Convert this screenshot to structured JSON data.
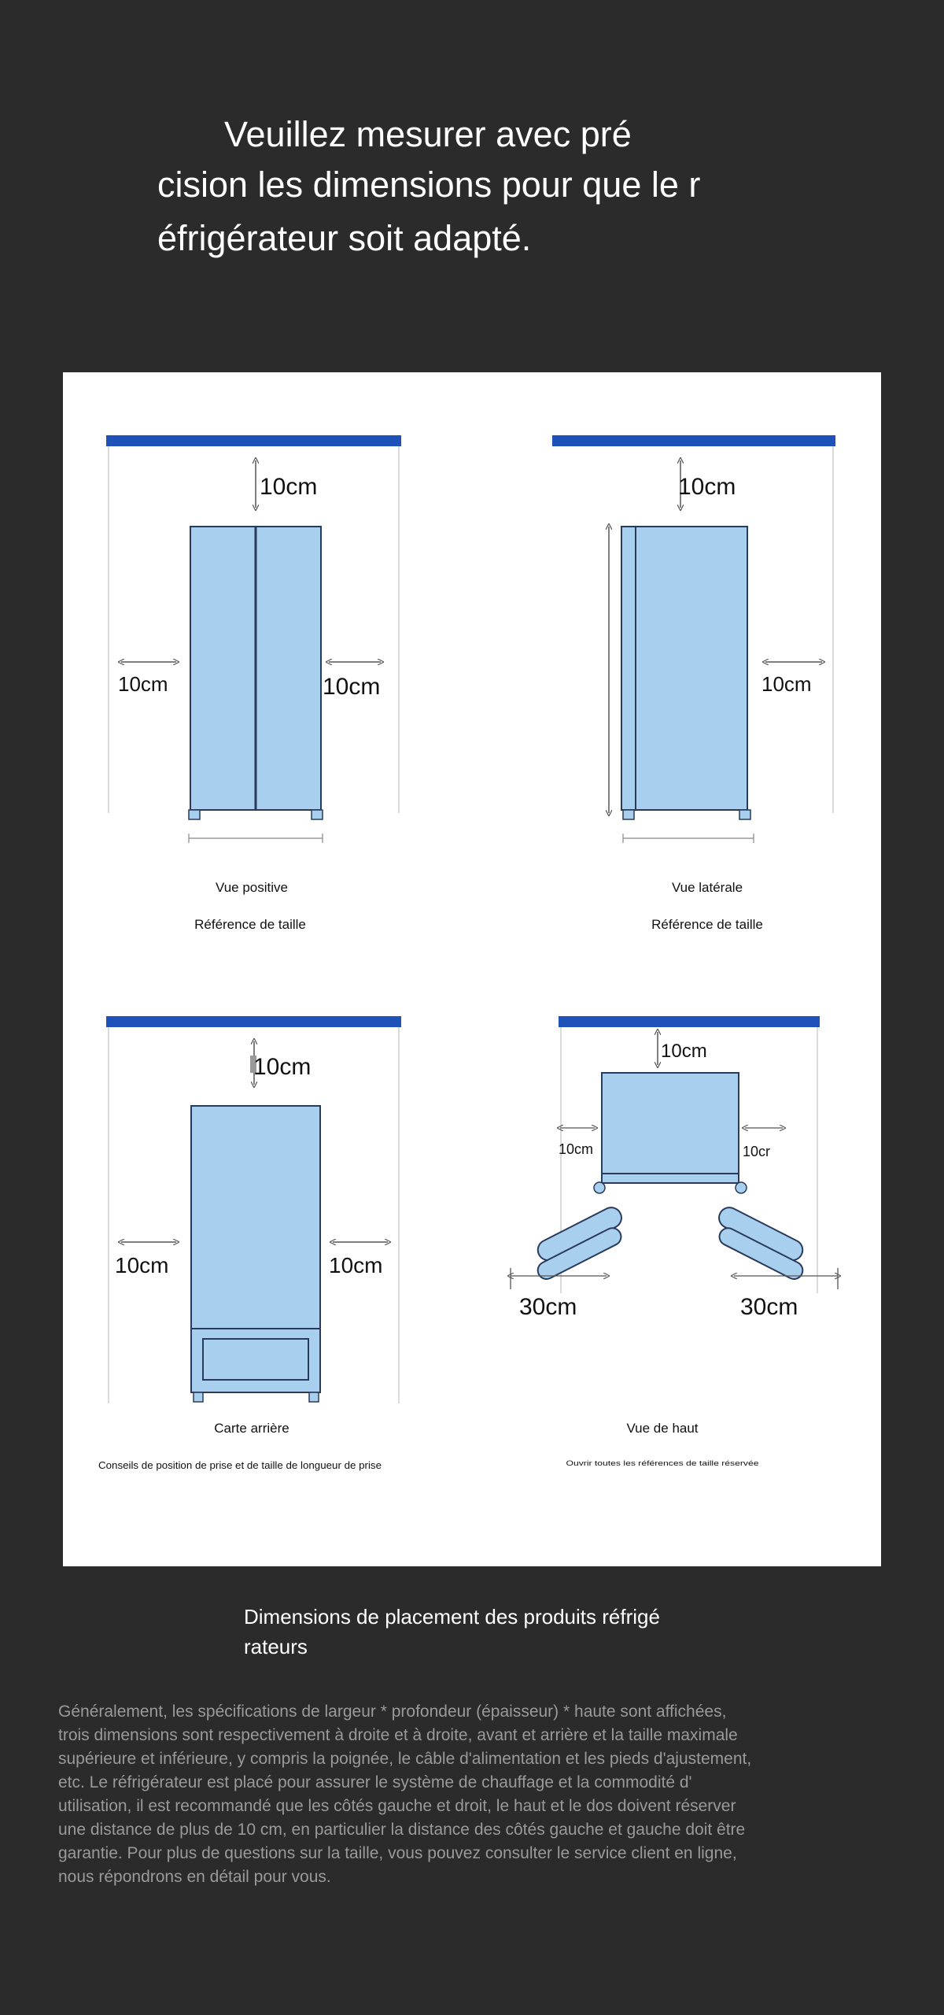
{
  "header": {
    "line1": "Veuillez mesurer avec pré",
    "line2": "cision les dimensions pour que le r",
    "line3": "éfrigérateur soit adapté."
  },
  "diagram": {
    "front": {
      "top": "10cm",
      "left": "10cm",
      "right": "10cm",
      "title": "Vue positive",
      "subtitle": "Référence de taille"
    },
    "side": {
      "top": "10cm",
      "right": "10cm",
      "title": "Vue latérale",
      "subtitle": "Référence de taille"
    },
    "back": {
      "top": "10cm",
      "left": "10cm",
      "right": "10cm",
      "title": "Carte arrière",
      "subtitle": "Conseils de position de prise et de taille de longueur de prise"
    },
    "top_view": {
      "top": "10cm",
      "left": "10cm",
      "right": "10cr",
      "door_left": "30cm",
      "door_right": "30cm",
      "title": "Vue de haut",
      "subtitle": "Ouvrir toutes les références de taille réservée"
    }
  },
  "caption": {
    "line1": "Dimensions de placement des produits réfrigé",
    "line2": "rateurs"
  },
  "description": [
    "Généralement, les spécifications de largeur * profondeur (épaisseur) * haute sont affichées,",
    "trois dimensions sont respectivement à droite et à droite, avant et arrière et la taille maximale",
    "supérieure et inférieure, y compris la poignée, le câble d'alimentation et les pieds d'ajustement,",
    "etc. Le réfrigérateur est placé pour assurer le système de chauffage et la commodité d'",
    "utilisation, il est recommandé que les côtés gauche et droit, le haut et le dos doivent réserver",
    "une distance de plus de 10 cm, en particulier la distance des côtés gauche et gauche doit être",
    "garantie. Pour plus de questions sur la taille, vous pouvez consulter le service client en ligne,",
    "nous répondrons en détail pour vous."
  ],
  "colors": {
    "background": "#2b2b2b",
    "panel": "#ffffff",
    "fridge_fill": "#a8d0ee",
    "fridge_stroke": "#2a3a5a",
    "wall": "#1e52b8"
  }
}
